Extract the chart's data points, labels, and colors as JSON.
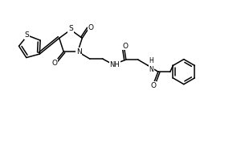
{
  "bg_color": "#ffffff",
  "line_color": "#000000",
  "line_width": 1.1,
  "figsize": [
    3.0,
    2.0
  ],
  "dpi": 100,
  "xlim": [
    0,
    30
  ],
  "ylim": [
    0,
    20
  ]
}
